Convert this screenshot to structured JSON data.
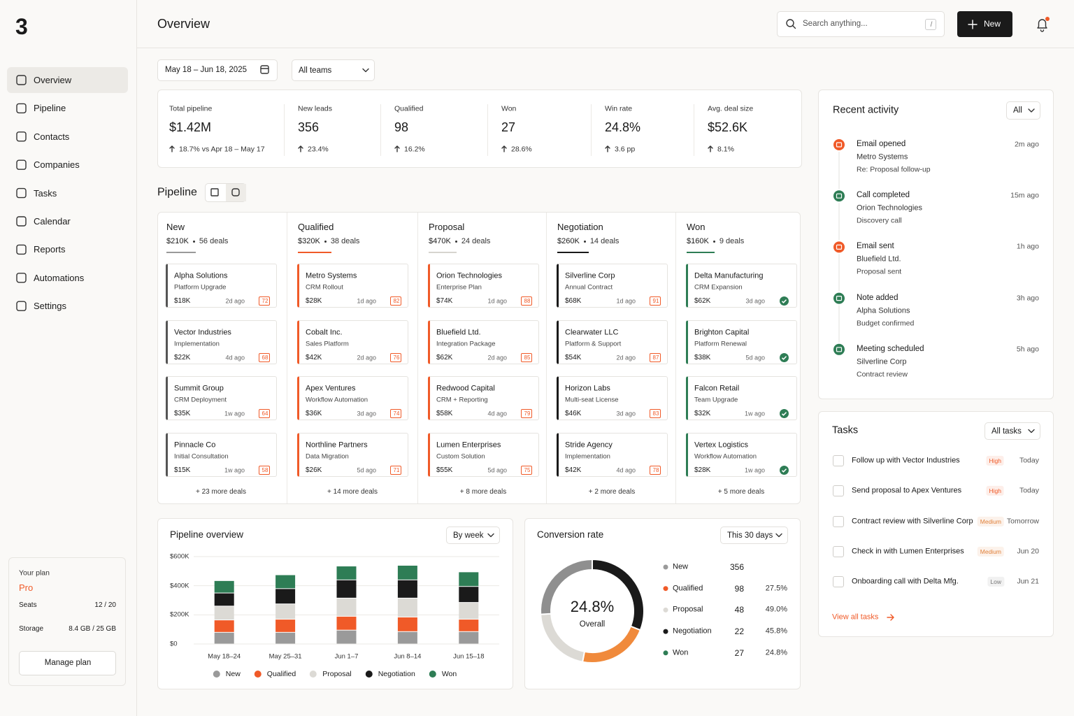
{
  "logo": "3",
  "nav": [
    "Overview",
    "Pipeline",
    "Contacts",
    "Companies",
    "Tasks",
    "Calendar",
    "Reports",
    "Automations",
    "Settings"
  ],
  "plan": {
    "label": "Your plan",
    "name": "Pro",
    "rows": [
      [
        "Seats",
        "12 / 20"
      ],
      [
        "Storage",
        "8.4 GB / 25 GB"
      ]
    ],
    "button": "Manage plan"
  },
  "header": {
    "title": "Overview",
    "search": "Search anything...",
    "shortcut": "/",
    "new": "New"
  },
  "filters": {
    "date": "May 18 – Jun 18, 2025",
    "team": "All teams"
  },
  "kpis": [
    {
      "label": "Total pipeline",
      "value": "$1.42M",
      "delta": "18.7% vs Apr 18 – May 17"
    },
    {
      "label": "New leads",
      "value": "356",
      "delta": "23.4%"
    },
    {
      "label": "Qualified",
      "value": "98",
      "delta": "16.2%"
    },
    {
      "label": "Won",
      "value": "27",
      "delta": "28.6%"
    },
    {
      "label": "Win rate",
      "value": "24.8%",
      "delta": "3.6 pp"
    },
    {
      "label": "Avg. deal size",
      "value": "$52.6K",
      "delta": "8.1%"
    }
  ],
  "pipeline": {
    "title": "Pipeline",
    "columns": [
      {
        "name": "New",
        "amount": "$210K",
        "deals": "56 deals",
        "color": "#9a9a9a",
        "card_color": "#555555",
        "more": "+ 23 more deals",
        "cards": [
          {
            "company": "Alpha Solutions",
            "product": "Platform Upgrade",
            "amount": "$18K",
            "age": "2d ago",
            "score": 72
          },
          {
            "company": "Vector Industries",
            "product": "Implementation",
            "amount": "$22K",
            "age": "4d ago",
            "score": 68
          },
          {
            "company": "Summit Group",
            "product": "CRM Deployment",
            "amount": "$35K",
            "age": "1w ago",
            "score": 64
          },
          {
            "company": "Pinnacle Co",
            "product": "Initial Consultation",
            "amount": "$15K",
            "age": "1w ago",
            "score": 58
          }
        ]
      },
      {
        "name": "Qualified",
        "amount": "$320K",
        "deals": "38 deals",
        "color": "#f05a28",
        "card_color": "#f05a28",
        "more": "+ 14 more deals",
        "cards": [
          {
            "company": "Metro Systems",
            "product": "CRM Rollout",
            "amount": "$28K",
            "age": "1d ago",
            "score": 82
          },
          {
            "company": "Cobalt Inc.",
            "product": "Sales Platform",
            "amount": "$42K",
            "age": "2d ago",
            "score": 76
          },
          {
            "company": "Apex Ventures",
            "product": "Workflow Automation",
            "amount": "$36K",
            "age": "3d ago",
            "score": 74
          },
          {
            "company": "Northline Partners",
            "product": "Data Migration",
            "amount": "$26K",
            "age": "5d ago",
            "score": 71
          }
        ]
      },
      {
        "name": "Proposal",
        "amount": "$470K",
        "deals": "24 deals",
        "color": "#d6d4cf",
        "card_color": "#f05a28",
        "more": "+ 8 more deals",
        "cards": [
          {
            "company": "Orion Technologies",
            "product": "Enterprise Plan",
            "amount": "$74K",
            "age": "1d ago",
            "score": 88
          },
          {
            "company": "Bluefield Ltd.",
            "product": "Integration Package",
            "amount": "$62K",
            "age": "2d ago",
            "score": 85
          },
          {
            "company": "Redwood Capital",
            "product": "CRM + Reporting",
            "amount": "$58K",
            "age": "4d ago",
            "score": 79
          },
          {
            "company": "Lumen Enterprises",
            "product": "Custom Solution",
            "amount": "$55K",
            "age": "5d ago",
            "score": 75
          }
        ]
      },
      {
        "name": "Negotiation",
        "amount": "$260K",
        "deals": "14 deals",
        "color": "#1a1a1a",
        "card_color": "#1a1a1a",
        "more": "+ 2 more deals",
        "cards": [
          {
            "company": "Silverline Corp",
            "product": "Annual Contract",
            "amount": "$68K",
            "age": "1d ago",
            "score": 91
          },
          {
            "company": "Clearwater LLC",
            "product": "Platform & Support",
            "amount": "$54K",
            "age": "2d ago",
            "score": 87
          },
          {
            "company": "Horizon Labs",
            "product": "Multi-seat License",
            "amount": "$46K",
            "age": "3d ago",
            "score": 83
          },
          {
            "company": "Stride Agency",
            "product": "Implementation",
            "amount": "$42K",
            "age": "4d ago",
            "score": 78
          }
        ]
      },
      {
        "name": "Won",
        "amount": "$160K",
        "deals": "9 deals",
        "color": "#2e7d55",
        "card_color": "#2e7d55",
        "more": "+ 5 more deals",
        "cards": [
          {
            "company": "Delta Manufacturing",
            "product": "CRM Expansion",
            "amount": "$62K",
            "age": "3d ago"
          },
          {
            "company": "Brighton Capital",
            "product": "Platform Renewal",
            "amount": "$38K",
            "age": "5d ago"
          },
          {
            "company": "Falcon Retail",
            "product": "Team Upgrade",
            "amount": "$32K",
            "age": "1w ago"
          },
          {
            "company": "Vertex Logistics",
            "product": "Workflow Automation",
            "amount": "$28K",
            "age": "1w ago"
          }
        ]
      }
    ]
  },
  "chart_data": [
    {
      "type": "bar",
      "stacked": true,
      "title": "Pipeline overview",
      "filter": "By week",
      "categories": [
        "May 18–24",
        "May 25–31",
        "Jun 1–7",
        "Jun 8–14",
        "Jun 15–18"
      ],
      "series": [
        {
          "name": "New",
          "color": "#9a9a9a",
          "values": [
            80000,
            80000,
            95000,
            85000,
            85000
          ]
        },
        {
          "name": "Qualified",
          "color": "#f05a28",
          "values": [
            85000,
            90000,
            95000,
            100000,
            85000
          ]
        },
        {
          "name": "Proposal",
          "color": "#dcdad5",
          "values": [
            95000,
            105000,
            125000,
            130000,
            115000
          ]
        },
        {
          "name": "Negotiation",
          "color": "#1a1a1a",
          "values": [
            90000,
            105000,
            125000,
            125000,
            110000
          ]
        },
        {
          "name": "Won",
          "color": "#2e7d55",
          "values": [
            85000,
            95000,
            95000,
            100000,
            100000
          ]
        }
      ],
      "ylim": [
        0,
        600000
      ],
      "yticks": [
        {
          "value": 0,
          "label": "$0"
        },
        {
          "value": 200000,
          "label": "$200K"
        },
        {
          "value": 400000,
          "label": "$400K"
        },
        {
          "value": 600000,
          "label": "$600K"
        }
      ],
      "grid": true,
      "legend": "bottom"
    },
    {
      "type": "donut",
      "title": "Conversion rate",
      "filter": "This 30 days",
      "center_value": "24.8%",
      "center_label": "Overall",
      "categories": [
        "New",
        "Qualified",
        "Proposal",
        "Negotiation",
        "Won"
      ],
      "colors": [
        "#9a9a9a",
        "#f05a28",
        "#dcdad5",
        "#1a1a1a",
        "#2e7d55"
      ],
      "counts": [
        356,
        98,
        48,
        22,
        27
      ],
      "rates": [
        null,
        "27.5%",
        "49.0%",
        "45.8%",
        "24.8%"
      ],
      "ring": [
        {
          "color": "#1a1a1a",
          "value": 31
        },
        {
          "color": "#f08a3c",
          "value": 22
        },
        {
          "color": "#dcdad5",
          "value": 21
        },
        {
          "color": "#8f8f8f",
          "value": 26
        }
      ]
    }
  ],
  "activity": {
    "title": "Recent activity",
    "filter": "All",
    "items": [
      {
        "title": "Email opened",
        "company": "Metro Systems",
        "detail": "Re: Proposal follow-up",
        "time": "2m ago",
        "color": "#f05a28"
      },
      {
        "title": "Call completed",
        "company": "Orion Technologies",
        "detail": "Discovery call",
        "time": "15m ago",
        "color": "#2e7d55"
      },
      {
        "title": "Email sent",
        "company": "Bluefield Ltd.",
        "detail": "Proposal sent",
        "time": "1h ago",
        "color": "#f05a28"
      },
      {
        "title": "Note added",
        "company": "Alpha Solutions",
        "detail": "Budget confirmed",
        "time": "3h ago",
        "color": "#2e7d55"
      },
      {
        "title": "Meeting scheduled",
        "company": "Silverline Corp",
        "detail": "Contract review",
        "time": "5h ago",
        "color": "#2e7d55"
      }
    ]
  },
  "tasks": {
    "title": "Tasks",
    "filter": "All tasks",
    "link": "View all tasks",
    "items": [
      {
        "text": "Follow up with Vector Industries",
        "priority": "High",
        "color": "#f05a28",
        "due": "Today"
      },
      {
        "text": "Send proposal to Apex Ventures",
        "priority": "High",
        "color": "#f05a28",
        "due": "Today"
      },
      {
        "text": "Contract review with Silverline Corp",
        "priority": "Medium",
        "color": "#e0803a",
        "due": "Tomorrow"
      },
      {
        "text": "Check in with Lumen Enterprises",
        "priority": "Medium",
        "color": "#e0803a",
        "due": "Jun 20"
      },
      {
        "text": "Onboarding call with Delta Mfg.",
        "priority": "Low",
        "color": "#777777",
        "due": "Jun 21"
      }
    ]
  }
}
